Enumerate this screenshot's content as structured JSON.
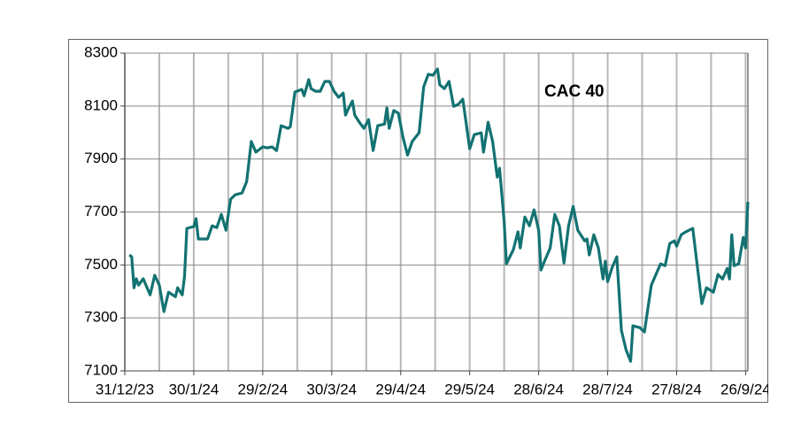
{
  "chart_data": {
    "type": "line",
    "annotation": "CAC 40",
    "color": "#137272",
    "grid": true,
    "xlim": [
      "2023-12-31",
      "2024-09-27"
    ],
    "xticks": [
      {
        "value": "2023-12-31",
        "label": "31/12/23"
      },
      {
        "value": "2024-01-30",
        "label": "30/1/24"
      },
      {
        "value": "2024-02-29",
        "label": "29/2/24"
      },
      {
        "value": "2024-03-30",
        "label": "30/3/24"
      },
      {
        "value": "2024-04-29",
        "label": "29/4/24"
      },
      {
        "value": "2024-05-29",
        "label": "29/5/24"
      },
      {
        "value": "2024-06-28",
        "label": "28/6/24"
      },
      {
        "value": "2024-07-28",
        "label": "28/7/24"
      },
      {
        "value": "2024-08-27",
        "label": "27/8/24"
      },
      {
        "value": "2024-09-26",
        "label": "26/9/24"
      }
    ],
    "x_minor_ticks": [
      "2024-01-15",
      "2024-02-14",
      "2024-03-15",
      "2024-04-14",
      "2024-05-14",
      "2024-06-13",
      "2024-07-13",
      "2024-08-12",
      "2024-09-11"
    ],
    "ylim": [
      7100,
      8300
    ],
    "yticks": [
      7100,
      7300,
      7500,
      7700,
      7900,
      8100,
      8300
    ],
    "x": [
      "2024-01-02",
      "2024-01-03",
      "2024-01-04",
      "2024-01-05",
      "2024-01-06",
      "2024-01-08",
      "2024-01-11",
      "2024-01-13",
      "2024-01-15",
      "2024-01-17",
      "2024-01-19",
      "2024-01-22",
      "2024-01-23",
      "2024-01-25",
      "2024-01-26",
      "2024-01-27",
      "2024-01-30",
      "2024-01-31",
      "2024-02-01",
      "2024-02-05",
      "2024-02-07",
      "2024-02-09",
      "2024-02-11",
      "2024-02-13",
      "2024-02-15",
      "2024-02-17",
      "2024-02-20",
      "2024-02-22",
      "2024-02-24",
      "2024-02-26",
      "2024-02-29",
      "2024-03-02",
      "2024-03-04",
      "2024-03-06",
      "2024-03-08",
      "2024-03-11",
      "2024-03-12",
      "2024-03-14",
      "2024-03-17",
      "2024-03-18",
      "2024-03-20",
      "2024-03-21",
      "2024-03-23",
      "2024-03-25",
      "2024-03-27",
      "2024-03-29",
      "2024-03-31",
      "2024-04-02",
      "2024-04-04",
      "2024-04-05",
      "2024-04-06",
      "2024-04-08",
      "2024-04-09",
      "2024-04-11",
      "2024-04-13",
      "2024-04-15",
      "2024-04-17",
      "2024-04-19",
      "2024-04-22",
      "2024-04-23",
      "2024-04-24",
      "2024-04-26",
      "2024-04-28",
      "2024-04-30",
      "2024-05-02",
      "2024-05-04",
      "2024-05-07",
      "2024-05-09",
      "2024-05-11",
      "2024-05-13",
      "2024-05-15",
      "2024-05-16",
      "2024-05-18",
      "2024-05-20",
      "2024-05-22",
      "2024-05-24",
      "2024-05-26",
      "2024-05-29",
      "2024-05-31",
      "2024-06-03",
      "2024-06-04",
      "2024-06-06",
      "2024-06-08",
      "2024-06-10",
      "2024-06-11",
      "2024-06-13",
      "2024-06-14",
      "2024-06-17",
      "2024-06-19",
      "2024-06-20",
      "2024-06-22",
      "2024-06-24",
      "2024-06-26",
      "2024-06-28",
      "2024-06-29",
      "2024-07-01",
      "2024-07-03",
      "2024-07-05",
      "2024-07-07",
      "2024-07-09",
      "2024-07-11",
      "2024-07-13",
      "2024-07-15",
      "2024-07-18",
      "2024-07-19",
      "2024-07-20",
      "2024-07-22",
      "2024-07-24",
      "2024-07-26",
      "2024-07-27",
      "2024-07-28",
      "2024-07-30",
      "2024-08-01",
      "2024-08-03",
      "2024-08-05",
      "2024-08-07",
      "2024-08-08",
      "2024-08-11",
      "2024-08-13",
      "2024-08-16",
      "2024-08-18",
      "2024-08-20",
      "2024-08-22",
      "2024-08-24",
      "2024-08-26",
      "2024-08-27",
      "2024-08-29",
      "2024-08-31",
      "2024-09-03",
      "2024-09-05",
      "2024-09-07",
      "2024-09-09",
      "2024-09-12",
      "2024-09-14",
      "2024-09-16",
      "2024-09-18",
      "2024-09-19",
      "2024-09-20",
      "2024-09-21",
      "2024-09-23",
      "2024-09-25",
      "2024-09-26",
      "2024-09-27"
    ],
    "values": [
      7538,
      7531,
      7414,
      7448,
      7424,
      7448,
      7387,
      7461,
      7424,
      7324,
      7397,
      7380,
      7414,
      7387,
      7457,
      7638,
      7645,
      7675,
      7598,
      7598,
      7648,
      7641,
      7691,
      7631,
      7748,
      7765,
      7772,
      7815,
      7966,
      7926,
      7946,
      7942,
      7946,
      7932,
      8026,
      8016,
      8022,
      8153,
      8163,
      8139,
      8200,
      8166,
      8156,
      8156,
      8193,
      8193,
      8156,
      8133,
      8149,
      8066,
      8086,
      8119,
      8066,
      8039,
      8016,
      8049,
      7932,
      8026,
      8032,
      8093,
      8016,
      8083,
      8073,
      7982,
      7915,
      7966,
      7999,
      8173,
      8220,
      8216,
      8240,
      8180,
      8166,
      8193,
      8099,
      8106,
      8126,
      7939,
      7992,
      7999,
      7926,
      8039,
      7966,
      7832,
      7865,
      7665,
      7504,
      7558,
      7625,
      7564,
      7681,
      7648,
      7708,
      7631,
      7481,
      7524,
      7564,
      7691,
      7648,
      7507,
      7648,
      7721,
      7631,
      7591,
      7598,
      7538,
      7614,
      7564,
      7447,
      7514,
      7437,
      7491,
      7531,
      7253,
      7180,
      7136,
      7270,
      7263,
      7247,
      7424,
      7464,
      7504,
      7497,
      7581,
      7591,
      7571,
      7614,
      7625,
      7638,
      7497,
      7354,
      7414,
      7397,
      7464,
      7447,
      7487,
      7447,
      7614,
      7497,
      7504,
      7604,
      7564,
      7738
    ]
  }
}
